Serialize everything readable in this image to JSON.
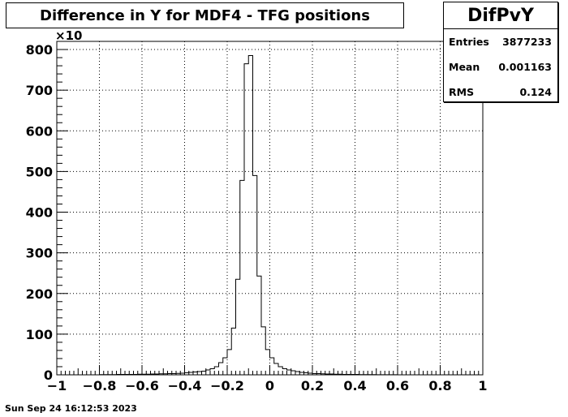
{
  "timestamp": "Sun Sep 24 16:12:53 2023",
  "stats": {
    "name": "DifPvY",
    "rows": [
      {
        "label": "Entries",
        "value": "3877233"
      },
      {
        "label": "Mean",
        "value": "0.001163"
      },
      {
        "label": "RMS",
        "value": "0.124"
      }
    ]
  },
  "chart_data": {
    "type": "bar",
    "title": "Difference in Y for MDF4 - TFG positions",
    "xlabel": "",
    "ylabel": "",
    "xlim": [
      -1,
      1
    ],
    "ylim": [
      0,
      820
    ],
    "y_multiplier_label": "×10",
    "x_ticks": [
      -1,
      -0.8,
      -0.6,
      -0.4,
      -0.2,
      0,
      0.2,
      0.4,
      0.6,
      0.8,
      1
    ],
    "x_tick_labels": [
      "−1",
      "−0.8",
      "−0.6",
      "−0.4",
      "−0.2",
      "0",
      "0.2",
      "0.4",
      "0.6",
      "0.8",
      "1"
    ],
    "y_ticks": [
      0,
      100,
      200,
      300,
      400,
      500,
      600,
      700,
      800
    ],
    "y_tick_labels": [
      "0",
      "100",
      "200",
      "300",
      "400",
      "500",
      "600",
      "700",
      "800"
    ],
    "grid": true,
    "bin_edges_start": -1,
    "bin_width": 0.02,
    "values": [
      0,
      0,
      0,
      0,
      0,
      0,
      0,
      0,
      0,
      0,
      0.5,
      0.5,
      0.5,
      0.5,
      1,
      1,
      1,
      1,
      1,
      1.5,
      1.5,
      1.5,
      2,
      2,
      2.5,
      2.5,
      3,
      3,
      3.5,
      4,
      5,
      6,
      7,
      8,
      9,
      12,
      15,
      20,
      30,
      42,
      62,
      115,
      235,
      478,
      765,
      785,
      490,
      243,
      118,
      62,
      42,
      28,
      20,
      15,
      12,
      10,
      8,
      6,
      5,
      4,
      3,
      3,
      2.5,
      2,
      2,
      1.5,
      1.5,
      1,
      1,
      1,
      1,
      0.5,
      0.5,
      0.5,
      0.5,
      0.3,
      0.3,
      0.2,
      0.2,
      0.2,
      0,
      0,
      0,
      0,
      0,
      0,
      0,
      0,
      0,
      0,
      0,
      0,
      0,
      0,
      0,
      0,
      0,
      0,
      0,
      0
    ]
  }
}
